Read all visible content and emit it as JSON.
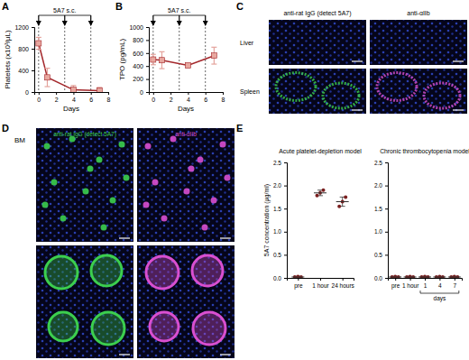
{
  "figure": {
    "panel_labels": [
      "A",
      "B",
      "C",
      "D",
      "E"
    ]
  },
  "chart_data": [
    {
      "type": "line",
      "x_label": "Days",
      "y_label": "Platelets (x10³/µL)",
      "x": [
        0,
        1,
        4,
        7
      ],
      "series": [
        {
          "values": [
            900,
            270,
            40,
            25
          ],
          "errors": [
            110,
            170,
            80,
            60
          ],
          "color": "#a3262a",
          "marker": "square"
        }
      ],
      "xlim": [
        -0.5,
        8
      ],
      "xticks": [
        0,
        2,
        4,
        6,
        8
      ],
      "ylim": [
        0,
        1200
      ],
      "yticks": [
        0,
        400,
        800,
        1200
      ],
      "annotations": [
        "5A7 s.c."
      ],
      "dose_days": [
        0,
        3,
        6
      ]
    },
    {
      "type": "line",
      "x_label": "Days",
      "y_label": "TPO (pg/mL)",
      "x": [
        0,
        1,
        4,
        7
      ],
      "series": [
        {
          "values": [
            500,
            490,
            410,
            560
          ],
          "errors": [
            80,
            130,
            30,
            130
          ],
          "color": "#a3262a",
          "marker": "square"
        }
      ],
      "xlim": [
        -0.5,
        8
      ],
      "xticks": [
        0,
        2,
        4,
        6,
        8
      ],
      "ylim": [
        0,
        1000
      ],
      "yticks": [
        0,
        200,
        400,
        600,
        800,
        1000
      ],
      "annotations": [
        "5A7 s.c."
      ],
      "dose_days": [
        0,
        3,
        6
      ]
    },
    {
      "type": "scatter",
      "title": "Acute platelet-depletion model",
      "y_label": "5A7 concentration (μg/ml)",
      "categories": [
        "pre",
        "1 hour",
        "24 hours"
      ],
      "points": [
        [
          0.02,
          0.03,
          0.02
        ],
        [
          1.78,
          1.84,
          1.9
        ],
        [
          1.55,
          1.65,
          1.75
        ]
      ],
      "means": [
        0.02,
        1.84,
        1.65
      ],
      "errors": [
        0.01,
        0.06,
        0.1
      ],
      "color": "#7a1f1f",
      "ylim": [
        0,
        2.5
      ],
      "yticks": [
        {
          "value": 0,
          "label": "0.0"
        },
        {
          "value": 0.5,
          "label": "0.5"
        },
        {
          "value": 1,
          "label": "1.0"
        },
        {
          "value": 1.5,
          "label": "1.5"
        },
        {
          "value": 2,
          "label": "2.0"
        },
        {
          "value": 2.5,
          "label": "2.5"
        }
      ]
    },
    {
      "type": "scatter",
      "title": "Chronic thrombocytopenia model",
      "categories": [
        "pre",
        "1 hour",
        "1",
        "4",
        "7"
      ],
      "points": [
        [
          0.02,
          0.03,
          0.02
        ],
        [
          0.02,
          0.03,
          0.02
        ],
        [
          0.02,
          0.03,
          0.02
        ],
        [
          0.02,
          0.03,
          0.02
        ],
        [
          0.02,
          0.03,
          0.02
        ]
      ],
      "means": [
        0.02,
        0.02,
        0.02,
        0.02,
        0.02
      ],
      "errors": [
        0.01,
        0.01,
        0.01,
        0.01,
        0.01
      ],
      "color": "#7a1f1f",
      "ylim": [
        0,
        2.5
      ],
      "yticks": [
        {
          "value": 0,
          "label": "0.0"
        },
        {
          "value": 0.5,
          "label": "0.5"
        },
        {
          "value": 1,
          "label": "1.0"
        },
        {
          "value": 1.5,
          "label": "1.5"
        },
        {
          "value": 2,
          "label": "2.0"
        },
        {
          "value": 2.5,
          "label": "2.5"
        }
      ],
      "annotations": [
        {
          "text": "days",
          "categories": [
            2,
            4
          ]
        }
      ]
    }
  ],
  "images": {
    "C": {
      "columns": [
        "anti-rat IgG (detect 5A7)",
        "anti-αIIb"
      ],
      "rows": [
        "Liver",
        "Spleen"
      ]
    },
    "D": {
      "tissue": "BM",
      "channels": [
        "anti-rat IgG (detect 5A7)",
        "anti-αIIb"
      ]
    }
  }
}
